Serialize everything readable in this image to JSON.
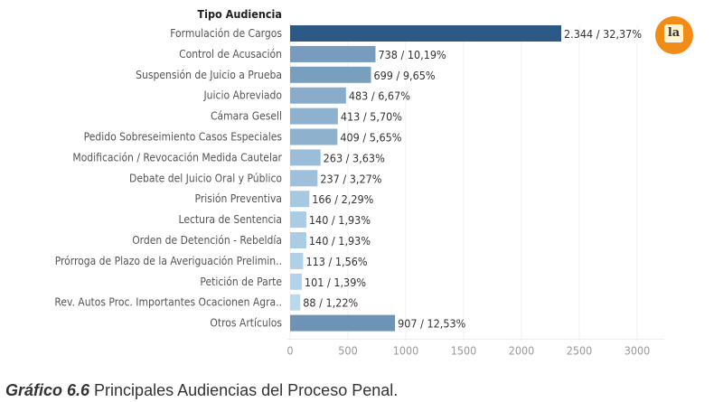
{
  "chart_data": {
    "type": "bar",
    "orientation": "horizontal",
    "header": "Tipo Audiencia",
    "categories": [
      "Formulación de Cargos",
      "Control de Acusación",
      "Suspensión de Juicio a Prueba",
      "Juicio Abreviado",
      "Cámara Gesell",
      "Pedido Sobreseimiento Casos Especiales",
      "Modificación / Revocación Medida Cautelar",
      "Debate del Juicio Oral y Público",
      "Prisión Preventiva",
      "Lectura de Sentencia",
      "Orden de Detención - Rebeldía",
      "Prórroga de Plazo de la Averiguación Prelimin..",
      "Petición de Parte",
      "Rev. Autos Proc. Importantes Ocacionen Agra..",
      "Otros Artículos"
    ],
    "values": [
      2344,
      738,
      699,
      483,
      413,
      409,
      263,
      237,
      166,
      140,
      140,
      113,
      101,
      88,
      907
    ],
    "data_labels": [
      "2.344 / 32,37%",
      "738 / 10,19%",
      "699 / 9,65%",
      "483 / 6,67%",
      "413 / 5,70%",
      "409 / 5,65%",
      "263 / 3,63%",
      "237 / 3,27%",
      "166 / 2,29%",
      "140 / 1,93%",
      "140 / 1,93%",
      "113 / 1,56%",
      "101 / 1,39%",
      "88 / 1,22%",
      "907 / 12,53%"
    ],
    "xticks": [
      "0",
      "500",
      "1000",
      "1500",
      "2000",
      "2500",
      "3000"
    ],
    "xlim": [
      0,
      3250
    ],
    "grid": true,
    "color_low": "#b9d9ef",
    "color_high": "#2d5986"
  },
  "caption": {
    "prefix": "Gráfico 6.6",
    "text": " Principales Audiencias del Proceso Penal."
  },
  "logo": {
    "text": "la"
  }
}
